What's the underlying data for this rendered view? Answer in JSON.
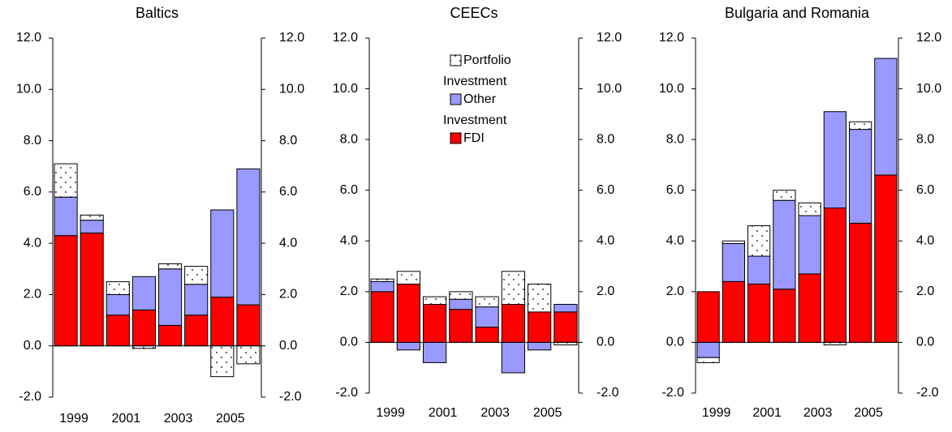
{
  "chart_data": [
    {
      "type": "bar",
      "stacked": true,
      "title": "Baltics",
      "categories": [
        "1999",
        null,
        "2001",
        null,
        "2003",
        null,
        "2005",
        null
      ],
      "series": [
        {
          "color": "#ff0000",
          "values": [
            4.3,
            4.4,
            1.2,
            1.4,
            0.8,
            1.2,
            1.9,
            1.6
          ]
        },
        {
          "color": "#9999ff",
          "values": [
            1.5,
            0.5,
            0.8,
            1.3,
            2.2,
            1.2,
            3.4,
            5.3
          ]
        },
        {
          "color": "#ffffff",
          "pattern": "dots",
          "values": [
            1.3,
            0.2,
            0.5,
            -0.1,
            0.2,
            0.7,
            -1.2,
            -0.7
          ]
        }
      ],
      "ylim": [
        -2,
        12
      ],
      "yticks": [
        {
          "value": -2,
          "label": "-2.0"
        },
        {
          "value": 0,
          "label": "0.0"
        },
        {
          "value": 2,
          "label": "2.0"
        },
        {
          "value": 4,
          "label": "4.0"
        },
        {
          "value": 6,
          "label": "6.0"
        },
        {
          "value": 8,
          "label": "8.0"
        },
        {
          "value": 10,
          "label": "10.0"
        },
        {
          "value": 12,
          "label": "12.0"
        }
      ],
      "y2lim": [
        -2,
        12
      ],
      "y2ticks": [
        {
          "value": -2,
          "label": "-2.0"
        },
        {
          "value": 0,
          "label": "0.0"
        },
        {
          "value": 2,
          "label": "2.0"
        },
        {
          "value": 4,
          "label": "4.0"
        },
        {
          "value": 6,
          "label": "6.0"
        },
        {
          "value": 8,
          "label": "8.0"
        },
        {
          "value": 10,
          "label": "10.0"
        },
        {
          "value": 12,
          "label": "12.0"
        }
      ]
    },
    {
      "type": "bar",
      "stacked": true,
      "title": "CEECs",
      "legend": "upper center",
      "categories": [
        "1999",
        null,
        "2001",
        null,
        "2003",
        null,
        "2005",
        null
      ],
      "series": [
        {
          "name": "FDI",
          "color": "#ff0000",
          "values": [
            2.0,
            2.3,
            1.5,
            1.3,
            0.6,
            1.5,
            1.2,
            1.2
          ]
        },
        {
          "name": "Other Investment",
          "color": "#9999ff",
          "values": [
            0.4,
            -0.3,
            -0.8,
            0.4,
            0.8,
            -1.2,
            -0.3,
            0.3
          ]
        },
        {
          "name": "Portfolio Investment",
          "color": "#ffffff",
          "pattern": "dots",
          "values": [
            0.1,
            0.5,
            0.3,
            0.3,
            0.4,
            1.3,
            1.1,
            -0.1
          ]
        }
      ],
      "ylim": [
        -2,
        12
      ],
      "yticks": [
        {
          "value": -2,
          "label": "-2.0"
        },
        {
          "value": 0,
          "label": "0.0"
        },
        {
          "value": 2,
          "label": "2.0"
        },
        {
          "value": 4,
          "label": "4.0"
        },
        {
          "value": 6,
          "label": "6.0"
        },
        {
          "value": 8,
          "label": "8.0"
        },
        {
          "value": 10,
          "label": "10.0"
        },
        {
          "value": 12,
          "label": "12.0"
        }
      ],
      "y2lim": [
        -2,
        12
      ],
      "y2ticks": [
        {
          "value": -2,
          "label": "-2.0"
        },
        {
          "value": 0,
          "label": "0.0"
        },
        {
          "value": 2,
          "label": "2.0"
        },
        {
          "value": 4,
          "label": "4.0"
        },
        {
          "value": 6,
          "label": "6.0"
        },
        {
          "value": 8,
          "label": "8.0"
        },
        {
          "value": 10,
          "label": "10.0"
        },
        {
          "value": 12,
          "label": "12.0"
        }
      ]
    },
    {
      "type": "bar",
      "stacked": true,
      "title": "Bulgaria and Romania",
      "categories": [
        "1999",
        null,
        "2001",
        null,
        "2003",
        null,
        "2005",
        null
      ],
      "series": [
        {
          "color": "#ff0000",
          "values": [
            2.0,
            2.4,
            2.3,
            2.1,
            2.7,
            5.3,
            4.7,
            6.6
          ]
        },
        {
          "color": "#9999ff",
          "values": [
            -0.6,
            1.5,
            1.1,
            3.5,
            2.3,
            3.8,
            3.7,
            4.6
          ]
        },
        {
          "color": "#ffffff",
          "pattern": "dots",
          "values": [
            -0.2,
            0.1,
            1.2,
            0.4,
            0.5,
            -0.1,
            0.3,
            0
          ]
        }
      ],
      "ylim": [
        -2,
        12
      ],
      "yticks": [
        {
          "value": -2,
          "label": "-2.0"
        },
        {
          "value": 0,
          "label": "0.0"
        },
        {
          "value": 2,
          "label": "2.0"
        },
        {
          "value": 4,
          "label": "4.0"
        },
        {
          "value": 6,
          "label": "6.0"
        },
        {
          "value": 8,
          "label": "8.0"
        },
        {
          "value": 10,
          "label": "10.0"
        },
        {
          "value": 12,
          "label": "12.0"
        }
      ],
      "y2lim": [
        -2,
        12
      ],
      "y2ticks": [
        {
          "value": -2,
          "label": "-2.0"
        },
        {
          "value": 0,
          "label": "0.0"
        },
        {
          "value": 2,
          "label": "2.0"
        },
        {
          "value": 4,
          "label": "4.0"
        },
        {
          "value": 6,
          "label": "6.0"
        },
        {
          "value": 8,
          "label": "8.0"
        },
        {
          "value": 10,
          "label": "10.0"
        },
        {
          "value": 12,
          "label": "12.0"
        }
      ]
    }
  ]
}
